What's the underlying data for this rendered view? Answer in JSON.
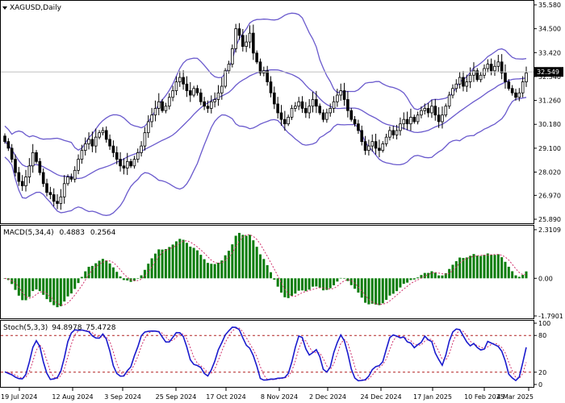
{
  "chart_data": {
    "type": "candlestick",
    "title": "XAGUSD,Daily",
    "dates": [
      "19 Jul 2024",
      "12 Aug 2024",
      "3 Sep 2024",
      "25 Sep 2024",
      "17 Oct 2024",
      "8 Nov 2024",
      "2 Dec 2024",
      "24 Dec 2024",
      "17 Jan 2025",
      "10 Feb 2025",
      "4 Mar 2025"
    ],
    "price_ticks": [
      "35.580",
      "34.500",
      "33.420",
      "32.340",
      "31.260",
      "30.180",
      "29.100",
      "28.020",
      "26.970",
      "25.890"
    ],
    "current_price": "32.549",
    "ylim": [
      25.89,
      35.58
    ],
    "closes": [
      29.4,
      29.1,
      28.6,
      28.0,
      27.6,
      27.4,
      27.8,
      28.3,
      28.9,
      28.5,
      28.0,
      27.5,
      27.1,
      27.0,
      26.7,
      26.6,
      26.9,
      27.5,
      27.8,
      27.7,
      28.1,
      28.6,
      29.0,
      29.3,
      29.5,
      29.2,
      29.6,
      29.8,
      29.9,
      29.5,
      29.2,
      28.9,
      28.6,
      28.3,
      28.2,
      28.5,
      28.3,
      28.6,
      28.9,
      29.2,
      29.8,
      30.3,
      30.6,
      30.9,
      31.2,
      30.8,
      31.0,
      31.4,
      31.7,
      32.1,
      32.3,
      32.0,
      31.7,
      31.5,
      31.8,
      31.6,
      31.2,
      31.0,
      30.9,
      31.2,
      31.3,
      31.6,
      31.9,
      32.6,
      32.9,
      33.6,
      34.5,
      34.2,
      33.7,
      33.9,
      34.3,
      33.4,
      33.0,
      32.5,
      32.6,
      32.1,
      31.6,
      31.1,
      30.7,
      30.4,
      30.2,
      30.5,
      30.9,
      31.0,
      31.2,
      30.9,
      30.7,
      31.0,
      31.3,
      31.0,
      30.7,
      30.4,
      30.7,
      30.9,
      31.2,
      31.5,
      31.7,
      31.3,
      30.8,
      30.4,
      30.2,
      29.9,
      29.4,
      29.0,
      29.2,
      29.4,
      29.1,
      29.0,
      29.3,
      29.6,
      29.9,
      29.7,
      29.9,
      30.2,
      30.4,
      30.2,
      30.5,
      30.3,
      30.6,
      30.8,
      30.9,
      30.7,
      31.0,
      30.6,
      30.3,
      30.6,
      31.0,
      31.5,
      31.8,
      32.0,
      32.3,
      31.9,
      32.1,
      32.4,
      32.6,
      32.2,
      32.4,
      32.7,
      32.9,
      32.6,
      32.8,
      33.0,
      32.5,
      32.1,
      31.8,
      31.6,
      31.4,
      31.6,
      32.1,
      32.5
    ],
    "bands_period": 20,
    "macd": {
      "label": "MACD(5,34,4)",
      "main": "0.4883",
      "signal": "0.2564",
      "ticks": [
        "2.3109",
        "0.00",
        "-1.7901"
      ],
      "ylim": [
        -1.79,
        2.31
      ]
    },
    "stoch": {
      "label": "Stoch(5,3,3)",
      "k": "94.8978",
      "d": "75.4728",
      "ticks": [
        "100",
        "80",
        "20",
        "0"
      ],
      "levels": [
        80,
        20
      ]
    }
  }
}
